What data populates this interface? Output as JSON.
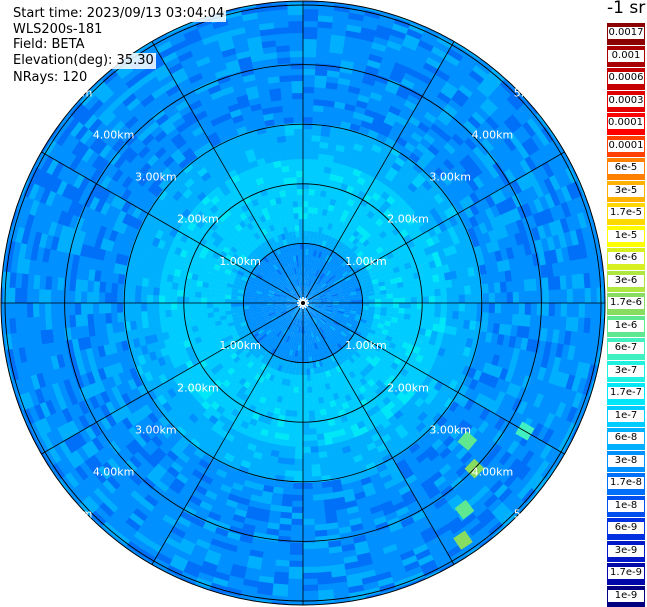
{
  "header": {
    "start_time": "Start time: 2023/09/13 03:04:04",
    "instrument": "WLS200s-181",
    "field": "Field: BETA",
    "elevation": "Elevation(deg): 35.30",
    "nrays": "NRays: 120"
  },
  "colorbar": {
    "unit": "-1 sr",
    "levels": [
      {
        "label": "0.0017",
        "color": "#8b0000"
      },
      {
        "label": "0.001",
        "color": "#a80000"
      },
      {
        "label": "0.0006",
        "color": "#c50000"
      },
      {
        "label": "0.0003",
        "color": "#e00000"
      },
      {
        "label": "0.00017",
        "color": "#ff0000"
      },
      {
        "label": "0.0001",
        "color": "#ff4000"
      },
      {
        "label": "6e-5",
        "color": "#ff8000"
      },
      {
        "label": "3e-5",
        "color": "#ffb000"
      },
      {
        "label": "1.7e-5",
        "color": "#ffd800"
      },
      {
        "label": "1e-5",
        "color": "#ffff00"
      },
      {
        "label": "6e-6",
        "color": "#d8f020"
      },
      {
        "label": "3e-6",
        "color": "#b0e640"
      },
      {
        "label": "1.7e-6",
        "color": "#88dc60"
      },
      {
        "label": "1e-6",
        "color": "#60e890"
      },
      {
        "label": "6e-7",
        "color": "#40f0c0"
      },
      {
        "label": "3e-7",
        "color": "#20f0e0"
      },
      {
        "label": "1.7e-7",
        "color": "#00e8f8"
      },
      {
        "label": "1e-7",
        "color": "#00ccff"
      },
      {
        "label": "6e-8",
        "color": "#00b0ff"
      },
      {
        "label": "3e-8",
        "color": "#0090ff"
      },
      {
        "label": "1.7e-8",
        "color": "#0070f8"
      },
      {
        "label": "1e-8",
        "color": "#0050f0"
      },
      {
        "label": "6e-9",
        "color": "#0030e0"
      },
      {
        "label": "3e-9",
        "color": "#0018c8"
      },
      {
        "label": "1.7e-9",
        "color": "#0008a8"
      },
      {
        "label": "1e-9",
        "color": "#000080"
      }
    ]
  },
  "chart_data": {
    "type": "heatmap",
    "projection": "polar PPI scan",
    "field": "BETA",
    "elevation_deg": 35.3,
    "nrays": 120,
    "ranges_km": [
      1.0,
      2.0,
      3.0,
      4.0,
      5.0
    ],
    "range_label_suffix": "km",
    "max_range_km": 5.0,
    "spoke_angles_deg": [
      0,
      30,
      60,
      90,
      120,
      150,
      180,
      210,
      240,
      270,
      300,
      330
    ],
    "range_profile": [
      {
        "max_km": 1.0,
        "level": "3e-8"
      },
      {
        "max_km": 1.2,
        "level": "6e-8"
      },
      {
        "max_km": 2.4,
        "level": "1e-7"
      },
      {
        "max_km": 3.0,
        "level": "6e-8"
      },
      {
        "max_km": 6.2,
        "level": "3e-8"
      }
    ],
    "speckle_levels": [
      "1.7e-8",
      "3e-8",
      "6e-8",
      "1e-7",
      "1.7e-7"
    ],
    "hotspots": [
      {
        "azimuth_deg": 130,
        "range_km": 3.6,
        "level": "1e-6"
      },
      {
        "azimuth_deg": 134,
        "range_km": 4.0,
        "level": "1.7e-6"
      },
      {
        "azimuth_deg": 142,
        "range_km": 4.4,
        "level": "1e-6"
      },
      {
        "azimuth_deg": 146,
        "range_km": 4.8,
        "level": "1.7e-6"
      },
      {
        "azimuth_deg": 120,
        "range_km": 4.3,
        "level": "6e-7"
      },
      {
        "azimuth_deg": 112,
        "range_km": 5.3,
        "level": "3e-7"
      }
    ],
    "grid": true
  }
}
